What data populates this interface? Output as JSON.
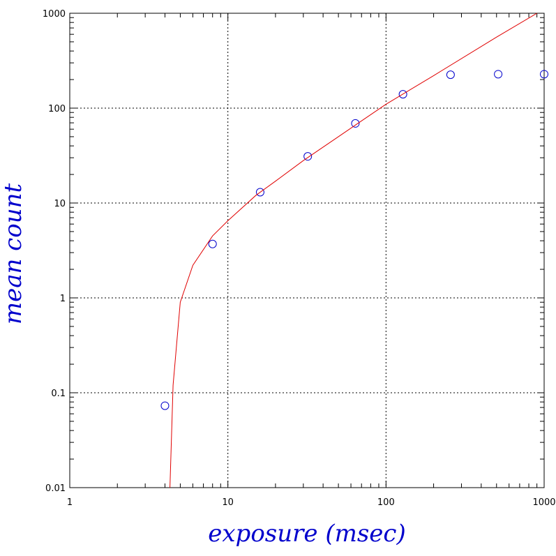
{
  "chart_data": {
    "type": "scatter",
    "title": "",
    "xlabel": "exposure (msec)",
    "ylabel": "mean count",
    "x_scale": "log",
    "y_scale": "log",
    "xlim": [
      1,
      1000
    ],
    "ylim": [
      0.01,
      1000
    ],
    "x_ticks": [
      1,
      10,
      100,
      1000
    ],
    "x_tick_labels": [
      "1",
      "10",
      "100",
      "1000"
    ],
    "y_ticks": [
      0.01,
      0.1,
      1,
      10,
      100,
      1000
    ],
    "y_tick_labels": [
      "0.01",
      "0.1",
      "1",
      "10",
      "100",
      "1000"
    ],
    "grid": true,
    "series": [
      {
        "kind": "markers",
        "marker": "open-circle",
        "color": "#0000cc",
        "points": [
          {
            "x": 4,
            "y": 0.073
          },
          {
            "x": 8,
            "y": 3.7
          },
          {
            "x": 16,
            "y": 13
          },
          {
            "x": 32,
            "y": 31
          },
          {
            "x": 64,
            "y": 69
          },
          {
            "x": 128,
            "y": 140
          },
          {
            "x": 256,
            "y": 225
          },
          {
            "x": 512,
            "y": 228
          },
          {
            "x": 1000,
            "y": 228
          }
        ]
      },
      {
        "kind": "line",
        "color": "#e00000",
        "points": [
          {
            "x": 4.3,
            "y": 0.01
          },
          {
            "x": 4.5,
            "y": 0.12
          },
          {
            "x": 5,
            "y": 0.9
          },
          {
            "x": 6,
            "y": 2.2
          },
          {
            "x": 8,
            "y": 4.5
          },
          {
            "x": 10,
            "y": 6.5
          },
          {
            "x": 15,
            "y": 12
          },
          {
            "x": 20,
            "y": 17
          },
          {
            "x": 30,
            "y": 28
          },
          {
            "x": 50,
            "y": 50
          },
          {
            "x": 100,
            "y": 110
          },
          {
            "x": 200,
            "y": 220
          },
          {
            "x": 500,
            "y": 560
          },
          {
            "x": 900,
            "y": 1000
          }
        ]
      }
    ]
  }
}
